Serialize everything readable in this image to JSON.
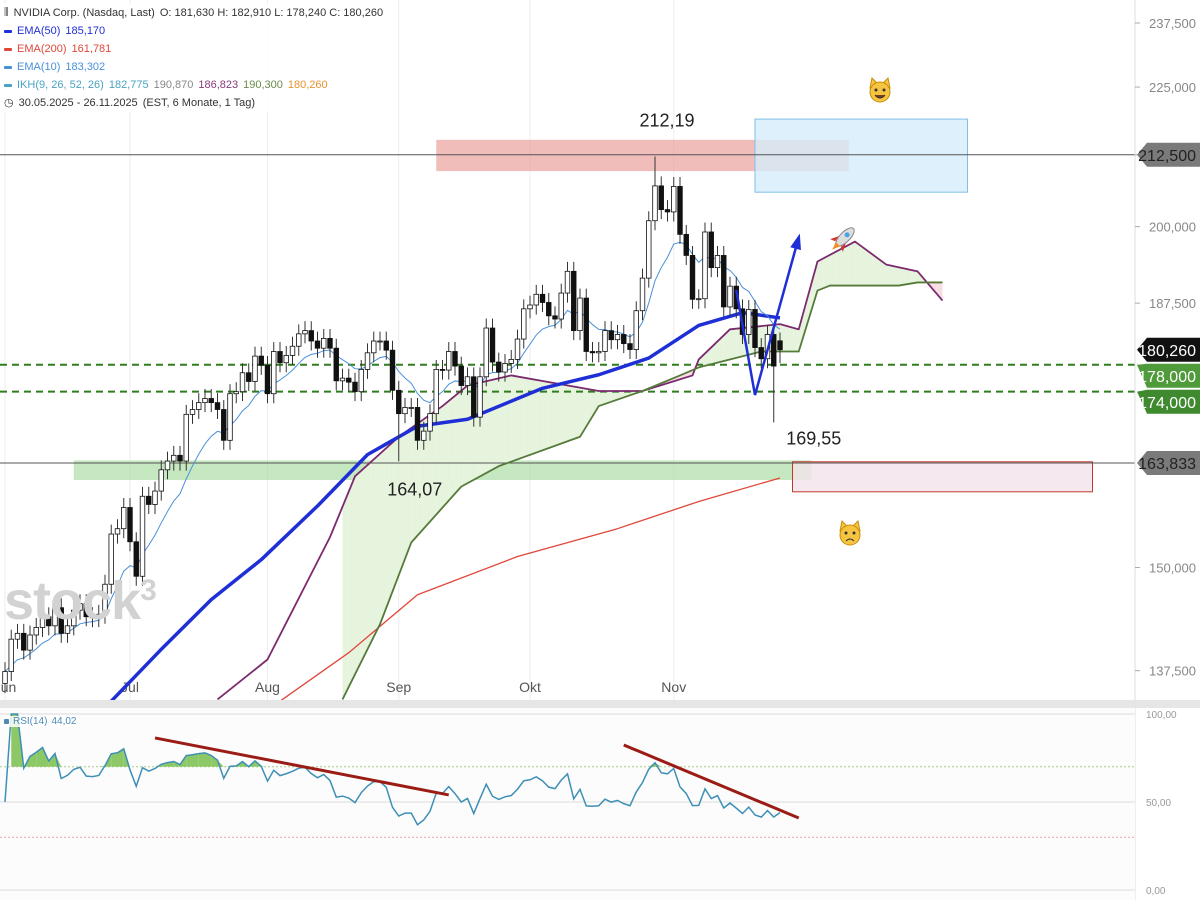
{
  "header": {
    "instrument": "NVIDIA Corp. (Nasdaq, Last)",
    "ohlc": "O: 181,630  H: 182,910  L: 178,240  C: 180,260",
    "period": "30.05.2025 - 26.11.2025",
    "period_info": "(EST, 6 Monate, 1 Tag)"
  },
  "legend": [
    {
      "name": "EMA(50)",
      "value": "185,170",
      "color": "#1f2fd6"
    },
    {
      "name": "EMA(200)",
      "value": "161,781",
      "color": "#e0473a"
    },
    {
      "name": "EMA(10)",
      "value": "183,302",
      "color": "#4a90d9"
    },
    {
      "name": "IKH(9, 26, 52, 26)",
      "value": "182,775",
      "color": "#4aa3c2",
      "extra": [
        {
          "v": "190,870",
          "color": "#888"
        },
        {
          "v": "186,823",
          "color": "#8a3b7a"
        },
        {
          "v": "190,300",
          "color": "#6c8a4a"
        },
        {
          "v": "180,260",
          "color": "#e8932d"
        }
      ]
    }
  ],
  "watermark": "stock3",
  "rsi": {
    "label": "RSI(14)",
    "value": "44,02",
    "ticks": [
      "100,00",
      "50,00",
      "0,00"
    ],
    "tick_values": [
      100,
      50,
      0
    ],
    "overbought": 70,
    "oversold": 30,
    "trendlines": [
      {
        "from": [
          "2025-07-08",
          86.4
        ],
        "to": [
          "2025-09-12",
          54
        ]
      },
      {
        "from": [
          "2025-10-22",
          82.4
        ],
        "to": [
          "2025-12-02",
          40.9
        ]
      }
    ]
  },
  "chart_data": {
    "type": "candlestick",
    "y_scale": "log",
    "ylim": [
      133,
      240
    ],
    "y_ticks": [
      237.5,
      225,
      212.5,
      200,
      187.5,
      150,
      137.5
    ],
    "y_tick_labels": [
      "237,500",
      "225,000",
      "212,500",
      "200,000",
      "187,500",
      "150,000",
      "137,500"
    ],
    "x_ticks": [
      {
        "date": "2025-06-02",
        "label": "Jun"
      },
      {
        "date": "2025-07-01",
        "label": "Jul"
      },
      {
        "date": "2025-08-01",
        "label": "Aug"
      },
      {
        "date": "2025-09-02",
        "label": "Sep"
      },
      {
        "date": "2025-10-01",
        "label": "Okt"
      },
      {
        "date": "2025-11-03",
        "label": "Nov"
      }
    ],
    "closes_by_month": {
      "2025-06": [
        137.4,
        141.2,
        141.9,
        139.9,
        141.7,
        142.6,
        143.9,
        142.8,
        145.0,
        141.9,
        142.8,
        144.7,
        145.5,
        143.9,
        143.8,
        144.2,
        147.9,
        154.3,
        155.0,
        157.8
      ],
      "2025-07": [
        153.3,
        148.9,
        159.3,
        158.2,
        160.0,
        162.9,
        164.1,
        164.9,
        164.1,
        170.7,
        171.4,
        172.4,
        173.0,
        172.4,
        171.4,
        167.0,
        173.7,
        174.0,
        176.8,
        175.5,
        179.3,
        177.9
      ],
      "2025-08": [
        173.7,
        180.0,
        178.3,
        179.4,
        180.8,
        182.7,
        183.2,
        181.6,
        180.5,
        182.0,
        180.5,
        175.6,
        176.0,
        175.4,
        174.0,
        177.3,
        179.8,
        181.6,
        181.6,
        180.2,
        174.2
      ],
      "2025-09": [
        170.8,
        171.7,
        171.7,
        167.0,
        168.3,
        170.8,
        177.3,
        177.2,
        180.0,
        177.8,
        174.9,
        176.2,
        170.3,
        176.2,
        183.6,
        178.4,
        176.9,
        178.2,
        178.8,
        181.9,
        186.6
      ],
      "2025-10": [
        187.2,
        188.9,
        187.6,
        185.5,
        185.0,
        189.1,
        192.6,
        183.2,
        188.3,
        180.0,
        179.8,
        180.0,
        183.2,
        181.8,
        182.6,
        181.2,
        180.3,
        186.3,
        191.5,
        201.0,
        207.0,
        202.9,
        202.5
      ],
      "2025-11": [
        206.9,
        198.7,
        195.2,
        188.1,
        188.2,
        199.1,
        193.2,
        195.2,
        186.9,
        190.2,
        186.6,
        182.6,
        186.5,
        180.6,
        178.9,
        182.6,
        177.8,
        180.26
      ]
    },
    "last_candle": {
      "open": 181.63,
      "high": 182.91,
      "low": 178.24,
      "close": 180.26
    },
    "price_labels": [
      {
        "date": "2025-10-29",
        "price": 212.19,
        "text": "212,19",
        "kind": "high"
      },
      {
        "date": "2025-11-25",
        "price": 169.55,
        "text": "169,55",
        "kind": "low"
      },
      {
        "date": "2025-09-02",
        "price": 164.07,
        "text": "164,07",
        "kind": "low"
      }
    ],
    "series": [
      {
        "name": "EMA(50)",
        "color": "#1f2fd6",
        "points": [
          [
            "2025-06-26",
            134
          ],
          [
            "2025-07-09",
            140
          ],
          [
            "2025-07-21",
            146
          ],
          [
            "2025-07-31",
            151
          ],
          [
            "2025-08-13",
            158
          ],
          [
            "2025-08-25",
            165
          ],
          [
            "2025-09-05",
            169
          ],
          [
            "2025-09-17",
            170
          ],
          [
            "2025-10-03",
            174.5
          ],
          [
            "2025-10-16",
            176.5
          ],
          [
            "2025-10-28",
            179
          ],
          [
            "2025-11-07",
            184
          ],
          [
            "2025-11-18",
            186
          ],
          [
            "2025-11-26",
            185.17
          ]
        ]
      },
      {
        "name": "EMA(200)",
        "color": "#e0473a",
        "points": [
          [
            "2025-08-05",
            134
          ],
          [
            "2025-08-20",
            139.6
          ],
          [
            "2025-09-05",
            146.6
          ],
          [
            "2025-09-29",
            151.4
          ],
          [
            "2025-10-21",
            155
          ],
          [
            "2025-11-07",
            158.6
          ],
          [
            "2025-11-26",
            161.78
          ]
        ]
      },
      {
        "name": "IKH span A",
        "color": "#7b2a6e",
        "points": [
          [
            "2025-07-22",
            134.2
          ],
          [
            "2025-08-01",
            138.8
          ],
          [
            "2025-08-15",
            153.9
          ],
          [
            "2025-08-21",
            162
          ],
          [
            "2025-09-02",
            167.5
          ],
          [
            "2025-09-11",
            171.9
          ],
          [
            "2025-09-17",
            174.9
          ],
          [
            "2025-09-26",
            176.4
          ],
          [
            "2025-10-16",
            174.1
          ],
          [
            "2025-10-27",
            174.1
          ],
          [
            "2025-11-06",
            176.4
          ],
          [
            "2025-11-07",
            178.8
          ],
          [
            "2025-11-14",
            183.4
          ],
          [
            "2025-11-26",
            184.2
          ],
          [
            "2025-12-02",
            183.4
          ],
          [
            "2025-12-05",
            194.2
          ],
          [
            "2025-12-15",
            197.5
          ],
          [
            "2025-12-22",
            193.7
          ],
          [
            "2025-12-30",
            192.6
          ],
          [
            "2026-01-06",
            187.9
          ]
        ]
      },
      {
        "name": "IKH span B",
        "color": "#557a3a",
        "points": [
          [
            "2025-08-19",
            134.2
          ],
          [
            "2025-08-27",
            143
          ],
          [
            "2025-09-04",
            153.2
          ],
          [
            "2025-09-16",
            160.6
          ],
          [
            "2025-09-24",
            163.4
          ],
          [
            "2025-10-13",
            167.5
          ],
          [
            "2025-10-16",
            171.9
          ],
          [
            "2025-10-27",
            174.1
          ],
          [
            "2025-11-04",
            176.4
          ],
          [
            "2025-11-07",
            177.6
          ],
          [
            "2025-11-21",
            180
          ],
          [
            "2025-12-02",
            180
          ],
          [
            "2025-12-05",
            189.5
          ],
          [
            "2025-12-09",
            190.3
          ],
          [
            "2025-12-24",
            190.3
          ],
          [
            "2025-12-30",
            190.8
          ],
          [
            "2026-01-06",
            190.8
          ]
        ]
      }
    ],
    "horizontal_lines": [
      {
        "price": 212.5,
        "label": "212,500",
        "style": "solid",
        "color": "#555",
        "label_bg": "#7a7a7a",
        "label_fg": "#222"
      },
      {
        "price": 178.0,
        "label": "178,000",
        "style": "dashed",
        "color": "#2f7d1f",
        "label_bg": "#4f9a3a",
        "label_fg": "#fff"
      },
      {
        "price": 174.0,
        "label": "174,000",
        "style": "dashed",
        "color": "#2f7d1f",
        "label_bg": "#3f8a2f",
        "label_fg": "#fff"
      },
      {
        "price": 163.833,
        "label": "163,833",
        "style": "solid",
        "color": "#555",
        "label_bg": "#7a7a7a",
        "label_fg": "#222"
      }
    ],
    "last_price_label": {
      "price": 180.26,
      "label": "180,260",
      "bg": "#111",
      "fg": "#fff"
    },
    "zones": [
      {
        "from": "2025-09-10",
        "to": "2025-12-12",
        "top": 215.2,
        "bottom": 209.6,
        "fill": "#e89a96",
        "stroke": "none"
      },
      {
        "from": "2025-11-20",
        "to": "2026-01-12",
        "top": 219.0,
        "bottom": 205.9,
        "fill": "#d6ecfa",
        "stroke": "#7fbfe8"
      },
      {
        "from": "2025-06-17",
        "to": "2025-12-04",
        "top": 164.2,
        "bottom": 161.5,
        "fill": "#a8dca0",
        "stroke": "none"
      },
      {
        "from": "2025-12-01",
        "to": "2026-02-09",
        "top": 164.0,
        "bottom": 159.9,
        "fill": "#f2e2ea",
        "stroke": "#c0392b"
      }
    ],
    "arrow": {
      "color": "#1f2fd6",
      "points": [
        [
          "2025-11-17",
          189.6
        ],
        [
          "2025-11-20",
          173.5
        ],
        [
          "2025-12-02",
          198.2
        ]
      ]
    }
  }
}
